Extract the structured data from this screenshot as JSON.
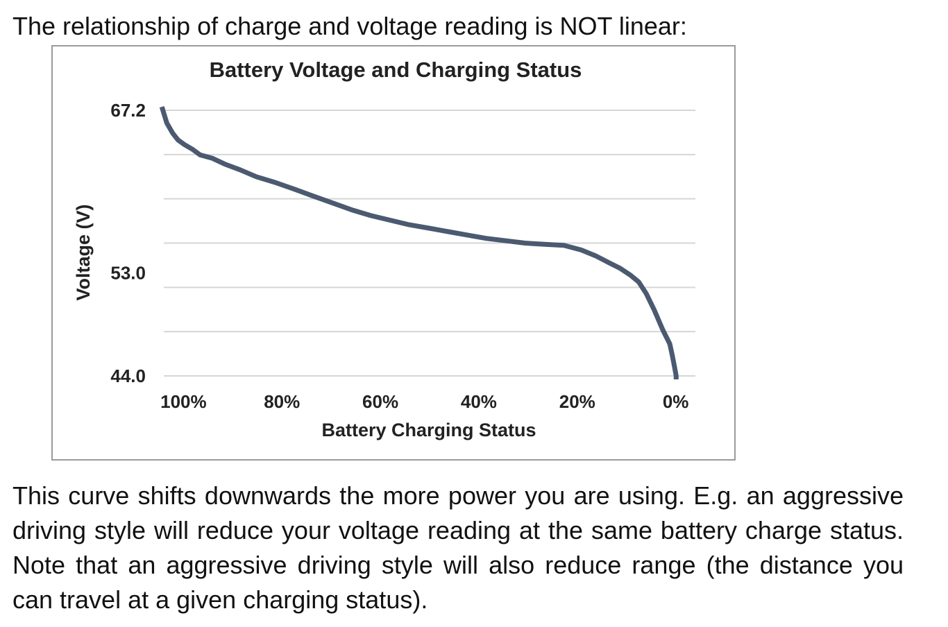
{
  "heading": "The relationship of charge and voltage reading is NOT linear:",
  "chart_data": {
    "type": "line",
    "title": "Battery Voltage and Charging Status",
    "xlabel": "Battery Charging Status",
    "ylabel": "Voltage (V)",
    "x_ticks": [
      "100%",
      "80%",
      "60%",
      "40%",
      "20%",
      "0%"
    ],
    "y_ticks": [
      "67.2",
      "53.0",
      "44.0"
    ],
    "x_reversed": true,
    "xlim": [
      104,
      -4
    ],
    "ylim": [
      44.0,
      67.2
    ],
    "grid": true,
    "series": [
      {
        "color": "#4b5a70",
        "points": [
          [
            104.4,
            67.5
          ],
          [
            103.4,
            66.1
          ],
          [
            102.2,
            65.2
          ],
          [
            101.1,
            64.6
          ],
          [
            99.8,
            64.2
          ],
          [
            98.2,
            63.8
          ],
          [
            96.6,
            63.3
          ],
          [
            94.1,
            63.0
          ],
          [
            91.6,
            62.5
          ],
          [
            88.5,
            62.0
          ],
          [
            85.2,
            61.4
          ],
          [
            81.4,
            60.9
          ],
          [
            77.4,
            60.3
          ],
          [
            73.6,
            59.7
          ],
          [
            69.7,
            59.1
          ],
          [
            65.8,
            58.5
          ],
          [
            61.9,
            58.0
          ],
          [
            58.0,
            57.6
          ],
          [
            54.1,
            57.2
          ],
          [
            50.1,
            56.9
          ],
          [
            46.2,
            56.6
          ],
          [
            42.3,
            56.3
          ],
          [
            38.3,
            56.0
          ],
          [
            34.4,
            55.8
          ],
          [
            30.6,
            55.6
          ],
          [
            26.6,
            55.5
          ],
          [
            22.7,
            55.4
          ],
          [
            19.2,
            55.0
          ],
          [
            16.3,
            54.5
          ],
          [
            13.6,
            53.9
          ],
          [
            11.3,
            53.4
          ],
          [
            9.2,
            52.8
          ],
          [
            7.5,
            52.2
          ],
          [
            6.0,
            51.2
          ],
          [
            4.4,
            49.8
          ],
          [
            2.6,
            48.0
          ],
          [
            1.2,
            46.8
          ],
          [
            0.7,
            45.8
          ],
          [
            0.2,
            44.7
          ],
          [
            -0.1,
            44.0
          ],
          [
            -0.1,
            43.7
          ]
        ]
      }
    ]
  },
  "paragraph": "This curve shifts downwards the more power you are using. E.g. an aggressive driving style will reduce your voltage reading at the same battery charge status. Note that an aggressive driving style will also reduce range (the distance you can travel at a given charging status)."
}
